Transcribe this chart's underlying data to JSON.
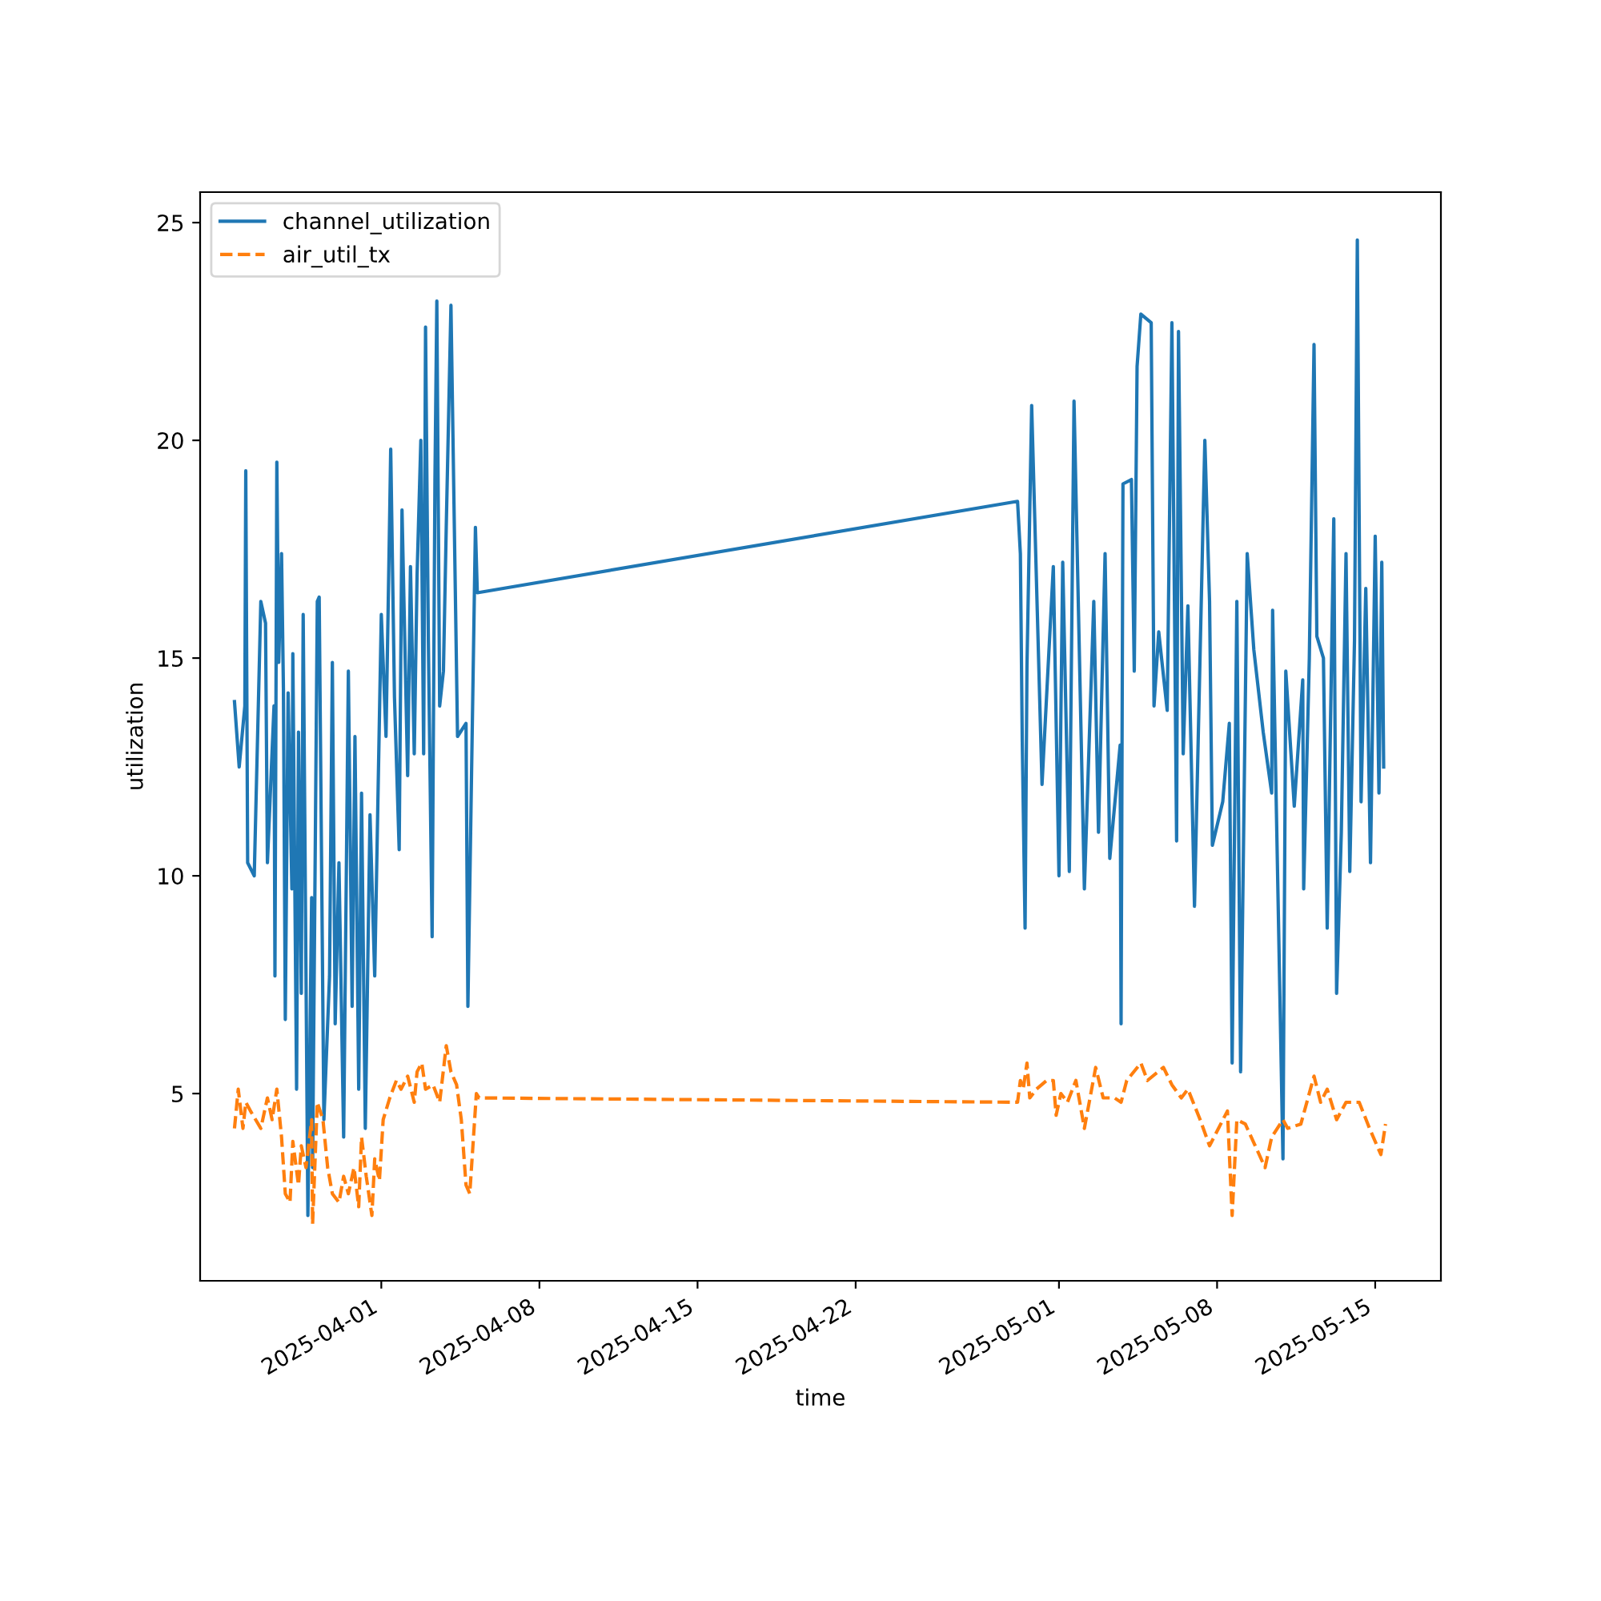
{
  "chart_data": {
    "type": "line",
    "xlabel": "time",
    "ylabel": "utilization",
    "xlim": [
      "2025-03-23T23:30",
      "2025-05-17T21:48"
    ],
    "ylim": [
      0.7,
      25.7
    ],
    "xticks": [
      "2025-04-01",
      "2025-04-08",
      "2025-04-15",
      "2025-04-22",
      "2025-05-01",
      "2025-05-08",
      "2025-05-15"
    ],
    "yticks": [
      5,
      10,
      15,
      20,
      25
    ],
    "grid": false,
    "legend": "top left",
    "marker": "none",
    "series": [
      {
        "name": "channel_utilization",
        "color": "#1f77b4",
        "line_style": "solid",
        "x": [
          "2025-03-25T12:00",
          "2025-03-25T17:00",
          "2025-03-25T23:00",
          "2025-03-26T00:00",
          "2025-03-26T02:00",
          "2025-03-26T09:00",
          "2025-03-26T16:00",
          "2025-03-26T21:00",
          "2025-03-26T23:00",
          "2025-03-27T06:00",
          "2025-03-27T07:00",
          "2025-03-27T09:00",
          "2025-03-27T11:00",
          "2025-03-27T14:00",
          "2025-03-27T16:00",
          "2025-03-27T18:00",
          "2025-03-27T21:00",
          "2025-03-28T01:00",
          "2025-03-28T02:00",
          "2025-03-28T06:00",
          "2025-03-28T08:00",
          "2025-03-28T11:00",
          "2025-03-28T13:00",
          "2025-03-28T18:00",
          "2025-03-28T22:00",
          "2025-03-28T23:00",
          "2025-03-29T04:00",
          "2025-03-29T06:00",
          "2025-03-29T11:00",
          "2025-03-29T17:00",
          "2025-03-29T20:00",
          "2025-03-29T23:00",
          "2025-03-30T03:00",
          "2025-03-30T08:00",
          "2025-03-30T13:00",
          "2025-03-30T17:00",
          "2025-03-30T20:00",
          "2025-03-31T00:00",
          "2025-03-31T03:00",
          "2025-03-31T07:00",
          "2025-03-31T12:00",
          "2025-03-31T17:00",
          "2025-04-01T00:00",
          "2025-04-01T05:00",
          "2025-04-01T09:00",
          "2025-04-01T10:00",
          "2025-04-01T14:00",
          "2025-04-01T19:00",
          "2025-04-01T22:00",
          "2025-04-02T04:00",
          "2025-04-02T07:00",
          "2025-04-02T11:00",
          "2025-04-02T14:00",
          "2025-04-02T18:00",
          "2025-04-02T21:00",
          "2025-04-02T23:00",
          "2025-04-03T02:00",
          "2025-04-03T06:00",
          "2025-04-03T09:00",
          "2025-04-03T11:00",
          "2025-04-03T14:00",
          "2025-04-03T18:00",
          "2025-04-03T21:00",
          "2025-04-04T02:00",
          "2025-04-04T09:00",
          "2025-04-04T18:00",
          "2025-04-04T20:00",
          "2025-04-05T04:00",
          "2025-04-05T06:00",
          "2025-04-29T04:00",
          "2025-04-29T07:00",
          "2025-04-29T09:00",
          "2025-04-29T12:00",
          "2025-04-29T14:00",
          "2025-04-29T19:00",
          "2025-04-30T06:00",
          "2025-04-30T18:00",
          "2025-05-01T00:00",
          "2025-05-01T04:00",
          "2025-05-01T11:00",
          "2025-05-01T16:00",
          "2025-05-02T03:00",
          "2025-05-02T13:00",
          "2025-05-02T18:00",
          "2025-05-03T01:00",
          "2025-05-03T06:00",
          "2025-05-03T17:00",
          "2025-05-03T18:00",
          "2025-05-03T20:00",
          "2025-05-04T05:00",
          "2025-05-04T08:00",
          "2025-05-04T11:00",
          "2025-05-04T15:00",
          "2025-05-05T02:00",
          "2025-05-05T05:00",
          "2025-05-05T10:00",
          "2025-05-05T19:00",
          "2025-05-06T00:00",
          "2025-05-06T05:00",
          "2025-05-06T07:00",
          "2025-05-06T12:00",
          "2025-05-06T17:00",
          "2025-05-07T00:00",
          "2025-05-07T11:00",
          "2025-05-07T16:00",
          "2025-05-07T19:00",
          "2025-05-08T06:00",
          "2025-05-08T13:00",
          "2025-05-08T16:00",
          "2025-05-08T21:00",
          "2025-05-09T01:00",
          "2025-05-09T08:00",
          "2025-05-09T15:00",
          "2025-05-10T01:00",
          "2025-05-10T10:00",
          "2025-05-10T11:00",
          "2025-05-10T22:00",
          "2025-05-11T01:00",
          "2025-05-11T10:00",
          "2025-05-11T19:00",
          "2025-05-11T20:00",
          "2025-05-12T02:00",
          "2025-05-12T07:00",
          "2025-05-12T10:00",
          "2025-05-12T17:00",
          "2025-05-12T21:00",
          "2025-05-13T04:00",
          "2025-05-13T07:00",
          "2025-05-13T12:00",
          "2025-05-13T17:00",
          "2025-05-13T21:00",
          "2025-05-14T02:00",
          "2025-05-14T05:00",
          "2025-05-14T09:00",
          "2025-05-14T14:00",
          "2025-05-14T19:00",
          "2025-05-15T00:00",
          "2025-05-15T04:00",
          "2025-05-15T07:00",
          "2025-05-15T09:00"
        ],
        "values": [
          14.0,
          12.5,
          13.9,
          19.3,
          10.3,
          10.0,
          16.3,
          15.8,
          10.3,
          13.9,
          7.7,
          19.5,
          14.9,
          17.4,
          14.3,
          6.7,
          14.2,
          9.7,
          15.1,
          5.1,
          13.3,
          7.3,
          16.0,
          2.2,
          9.5,
          3.3,
          16.3,
          16.4,
          4.4,
          7.7,
          14.9,
          6.6,
          10.3,
          4.0,
          14.7,
          7.0,
          13.2,
          5.1,
          11.9,
          4.2,
          11.4,
          7.7,
          16.0,
          13.2,
          18.4,
          19.8,
          14.1,
          10.6,
          18.4,
          12.3,
          17.1,
          12.8,
          16.9,
          20.0,
          12.8,
          22.6,
          15.4,
          8.6,
          19.1,
          23.2,
          13.9,
          14.7,
          18.0,
          23.1,
          13.2,
          13.5,
          7.0,
          18.0,
          16.5,
          18.6,
          17.4,
          13.1,
          8.8,
          14.8,
          20.8,
          12.1,
          17.1,
          10.0,
          17.2,
          10.1,
          20.9,
          9.7,
          16.3,
          11.0,
          17.4,
          10.4,
          13.0,
          6.6,
          19.0,
          19.1,
          14.7,
          21.7,
          22.9,
          22.7,
          13.9,
          15.6,
          13.8,
          22.7,
          10.8,
          22.5,
          12.8,
          16.2,
          9.3,
          20.0,
          16.3,
          10.7,
          11.7,
          13.5,
          5.7,
          16.3,
          5.5,
          17.4,
          15.2,
          13.3,
          11.9,
          16.1,
          3.5,
          14.7,
          11.6,
          14.5,
          9.7,
          15.0,
          22.2,
          15.5,
          15.0,
          8.8,
          18.2,
          7.3,
          11.0,
          17.4,
          10.1,
          15.4,
          24.6,
          11.7,
          16.6,
          10.3,
          17.8,
          11.9,
          17.2,
          12.5
        ]
      },
      {
        "name": "air_util_tx",
        "color": "#ff7f0e",
        "line_style": "dashed",
        "x": [
          "2025-03-25T12:00",
          "2025-03-25T16:00",
          "2025-03-25T21:00",
          "2025-03-26T00:00",
          "2025-03-26T05:00",
          "2025-03-26T16:00",
          "2025-03-26T23:00",
          "2025-03-27T04:00",
          "2025-03-27T09:00",
          "2025-03-27T14:00",
          "2025-03-27T18:00",
          "2025-03-27T23:00",
          "2025-03-28T02:00",
          "2025-03-28T08:00",
          "2025-03-28T11:00",
          "2025-03-28T16:00",
          "2025-03-28T22:00",
          "2025-03-28T23:00",
          "2025-03-29T04:00",
          "2025-03-29T10:00",
          "2025-03-29T15:00",
          "2025-03-29T20:00",
          "2025-03-30T03:00",
          "2025-03-30T08:00",
          "2025-03-30T13:00",
          "2025-03-30T19:00",
          "2025-03-31T00:00",
          "2025-03-31T03:00",
          "2025-03-31T08:00",
          "2025-03-31T14:00",
          "2025-03-31T17:00",
          "2025-03-31T22:00",
          "2025-04-01T02:00",
          "2025-04-01T09:00",
          "2025-04-01T16:00",
          "2025-04-01T21:00",
          "2025-04-02T04:00",
          "2025-04-02T11:00",
          "2025-04-02T14:00",
          "2025-04-02T19:00",
          "2025-04-02T23:00",
          "2025-04-03T07:00",
          "2025-04-03T14:00",
          "2025-04-03T21:00",
          "2025-04-04T02:00",
          "2025-04-04T08:00",
          "2025-04-04T13:00",
          "2025-04-04T18:00",
          "2025-04-04T22:00",
          "2025-04-05T05:00",
          "2025-04-05T08:00",
          "2025-04-29T04:00",
          "2025-04-29T07:00",
          "2025-04-29T10:00",
          "2025-04-29T14:00",
          "2025-04-29T17:00",
          "2025-04-30T00:00",
          "2025-04-30T11:00",
          "2025-04-30T18:00",
          "2025-04-30T21:00",
          "2025-05-01T02:00",
          "2025-05-01T09:00",
          "2025-05-01T18:00",
          "2025-05-02T03:00",
          "2025-05-02T15:00",
          "2025-05-02T23:00",
          "2025-05-03T11:00",
          "2025-05-03T18:00",
          "2025-05-04T00:00",
          "2025-05-04T15:00",
          "2025-05-04T22:00",
          "2025-05-05T15:00",
          "2025-05-06T00:00",
          "2025-05-06T10:00",
          "2025-05-06T17:00",
          "2025-05-07T06:00",
          "2025-05-07T16:00",
          "2025-05-08T11:00",
          "2025-05-08T16:00",
          "2025-05-08T21:00",
          "2025-05-09T06:00",
          "2025-05-10T03:00",
          "2025-05-10T10:00",
          "2025-05-10T22:00",
          "2025-05-11T03:00",
          "2025-05-11T17:00",
          "2025-05-12T07:00",
          "2025-05-12T14:00",
          "2025-05-12T21:00",
          "2025-05-13T07:00",
          "2025-05-13T17:00",
          "2025-05-14T07:00",
          "2025-05-14T18:00",
          "2025-05-15T06:00",
          "2025-05-15T11:00"
        ],
        "values": [
          4.2,
          5.1,
          4.2,
          4.8,
          4.6,
          4.2,
          4.9,
          4.4,
          5.1,
          4.0,
          2.7,
          2.5,
          3.9,
          2.9,
          3.8,
          3.3,
          4.4,
          2.0,
          4.8,
          4.4,
          3.3,
          2.7,
          2.5,
          3.1,
          2.7,
          3.3,
          2.4,
          4.0,
          3.1,
          2.2,
          3.5,
          3.0,
          4.4,
          4.9,
          5.3,
          5.1,
          5.4,
          4.8,
          5.5,
          5.7,
          5.1,
          5.2,
          4.8,
          6.1,
          5.5,
          5.2,
          4.4,
          2.9,
          2.7,
          5.0,
          4.9,
          4.8,
          5.3,
          5.1,
          5.7,
          4.9,
          5.1,
          5.3,
          5.3,
          4.5,
          5.0,
          4.8,
          5.3,
          4.2,
          5.6,
          4.9,
          4.9,
          4.8,
          5.3,
          5.7,
          5.3,
          5.6,
          5.2,
          4.9,
          5.1,
          4.4,
          3.8,
          4.6,
          2.2,
          4.4,
          4.3,
          3.3,
          4.0,
          4.4,
          4.2,
          4.3,
          5.4,
          4.8,
          5.1,
          4.4,
          4.8,
          4.8,
          4.2,
          3.6,
          4.3
        ]
      }
    ]
  }
}
